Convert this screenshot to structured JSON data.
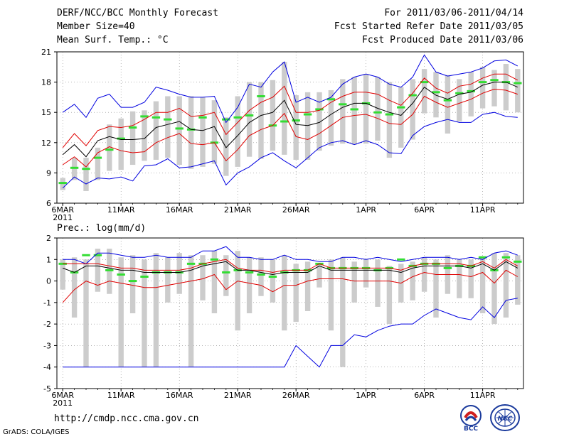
{
  "header": {
    "title": "DERF/NCC/BCC Monthly Forecast",
    "member_size": "Member Size=40",
    "variable1": "Mean Surf. Temp.: °C",
    "forecast_for": "For 2011/03/06-2011/04/14",
    "started": "Fcst Started Refer Date 2011/03/05",
    "produced": "Fcst Produced Date 2011/03/06"
  },
  "footer": {
    "url": "http://cmdp.ncc.cma.gov.cn",
    "credit": "GrADS: COLA/IGES",
    "logo1_text": "BCC",
    "logo2_text": "NCC"
  },
  "colors": {
    "mean": "#000000",
    "std_band": "#e00000",
    "extreme": "#0000e0",
    "box": "#cccccc",
    "median": "#33dd33"
  },
  "chart_data": [
    {
      "type": "line",
      "title": "Mean Surf. Temp.: °C",
      "ylabel": "Mean Surf. Temp.: °C",
      "ylim": [
        6,
        21
      ],
      "yticks": [
        6,
        9,
        12,
        15,
        18,
        21
      ],
      "x": [
        1,
        2,
        3,
        4,
        5,
        6,
        7,
        8,
        9,
        10,
        11,
        12,
        13,
        14,
        15,
        16,
        17,
        18,
        19,
        20,
        21,
        22,
        23,
        24,
        25,
        26,
        27,
        28,
        29,
        30,
        31,
        32,
        33,
        34,
        35,
        36,
        37,
        38,
        39,
        40
      ],
      "xlim": [
        0.5,
        40.5
      ],
      "xticks": [
        {
          "x": 1,
          "label": "6MAR",
          "sub": "2011"
        },
        {
          "x": 6,
          "label": "11MAR"
        },
        {
          "x": 11,
          "label": "16MAR"
        },
        {
          "x": 16,
          "label": "21MAR"
        },
        {
          "x": 21,
          "label": "26MAR"
        },
        {
          "x": 27,
          "label": "1APR"
        },
        {
          "x": 32,
          "label": "6APR"
        },
        {
          "x": 37,
          "label": "11APR"
        }
      ],
      "series": [
        {
          "name": "max",
          "values": [
            15.0,
            15.8,
            14.5,
            16.4,
            16.8,
            15.5,
            15.5,
            16.0,
            17.5,
            17.2,
            16.8,
            16.5,
            16.5,
            16.6,
            14.0,
            15.5,
            17.8,
            17.5,
            19.0,
            20.0,
            16.0,
            16.5,
            16.0,
            16.5,
            17.8,
            18.5,
            18.8,
            18.5,
            17.8,
            17.5,
            18.5,
            20.7,
            19.0,
            18.6,
            18.8,
            19.0,
            19.4,
            20.1,
            20.2,
            19.6
          ]
        },
        {
          "name": "mean_plus_std",
          "values": [
            11.5,
            12.9,
            11.7,
            13.2,
            13.6,
            13.5,
            13.7,
            14.3,
            15.0,
            15.0,
            15.4,
            14.6,
            14.7,
            15.0,
            12.8,
            14.0,
            15.2,
            16.0,
            16.5,
            17.6,
            15.0,
            15.0,
            15.2,
            16.0,
            16.6,
            17.0,
            17.0,
            16.8,
            16.2,
            15.7,
            16.9,
            18.4,
            17.4,
            16.9,
            17.6,
            17.8,
            18.4,
            18.8,
            18.8,
            18.2
          ]
        },
        {
          "name": "mean",
          "values": [
            10.8,
            11.8,
            10.6,
            12.2,
            12.6,
            12.3,
            12.3,
            12.4,
            13.5,
            13.8,
            14.1,
            13.3,
            13.2,
            13.6,
            11.5,
            12.7,
            14.0,
            14.7,
            15.0,
            16.2,
            13.8,
            13.7,
            14.0,
            14.8,
            15.5,
            15.9,
            15.9,
            15.4,
            15.0,
            14.7,
            15.9,
            17.5,
            16.7,
            16.3,
            16.8,
            17.0,
            17.7,
            18.0,
            18.0,
            17.5
          ]
        },
        {
          "name": "mean_minus_std",
          "values": [
            9.8,
            10.6,
            9.6,
            11.0,
            11.6,
            11.2,
            11.0,
            11.1,
            12.0,
            12.5,
            12.9,
            11.9,
            11.8,
            12.0,
            10.2,
            11.3,
            12.7,
            13.3,
            13.7,
            14.9,
            12.6,
            12.3,
            12.9,
            13.7,
            14.5,
            14.7,
            14.8,
            14.4,
            13.9,
            13.8,
            14.8,
            16.6,
            16.0,
            15.5,
            15.9,
            16.3,
            16.9,
            17.3,
            17.2,
            16.8
          ]
        },
        {
          "name": "min",
          "values": [
            7.5,
            8.6,
            7.9,
            8.5,
            8.4,
            8.6,
            8.2,
            9.7,
            9.8,
            10.4,
            9.5,
            9.6,
            9.9,
            10.2,
            7.8,
            9.0,
            9.6,
            10.5,
            11.0,
            10.2,
            9.5,
            10.5,
            11.5,
            12.0,
            12.2,
            11.8,
            12.2,
            11.8,
            11.0,
            10.9,
            12.7,
            13.6,
            14.0,
            14.3,
            14.0,
            14.0,
            14.8,
            15.0,
            14.6,
            14.5
          ]
        }
      ],
      "boxes": {
        "low": [
          7.3,
          8.3,
          7.2,
          8.3,
          9.2,
          9.3,
          9.8,
          10.2,
          10.3,
          10.5,
          9.8,
          9.4,
          9.6,
          9.9,
          8.7,
          9.6,
          10.6,
          10.4,
          11.2,
          10.8,
          10.3,
          10.3,
          11.2,
          11.7,
          11.9,
          11.8,
          11.9,
          12.2,
          10.5,
          11.5,
          12.3,
          14.9,
          14.5,
          12.9,
          14.1,
          14.6,
          15.4,
          15.6,
          15.2,
          15.0
        ],
        "high": [
          8.5,
          10.5,
          10.5,
          11.5,
          13.8,
          14.4,
          15.1,
          15.2,
          16.1,
          16.6,
          16.6,
          16.6,
          16.5,
          16.2,
          14.5,
          16.6,
          18.0,
          18.0,
          18.2,
          20.0,
          16.7,
          17.0,
          17.0,
          17.2,
          18.3,
          18.5,
          18.8,
          18.5,
          18.0,
          17.5,
          18.3,
          19.3,
          19.0,
          18.7,
          18.3,
          19.0,
          19.5,
          19.2,
          19.8,
          19.3
        ],
        "median": [
          8.0,
          9.5,
          9.4,
          10.5,
          11.3,
          12.4,
          13.5,
          14.6,
          14.5,
          14.3,
          13.4,
          13.3,
          14.5,
          12.0,
          14.3,
          14.5,
          14.7,
          16.6,
          13.7,
          14.1,
          14.2,
          14.8,
          15.3,
          16.3,
          15.8,
          15.3,
          15.9,
          15.0,
          14.8,
          15.5,
          16.7,
          18.0,
          17.0,
          16.2,
          16.9,
          17.1,
          18.0,
          18.2,
          18.0,
          17.9
        ]
      }
    },
    {
      "type": "line",
      "title": "Prec.: log(mm/d)",
      "ylabel": "Prec.: log(mm/d)",
      "ylim": [
        -5,
        2
      ],
      "yticks": [
        -5,
        -4,
        -3,
        -2,
        -1,
        0,
        1,
        2
      ],
      "x": [
        1,
        2,
        3,
        4,
        5,
        6,
        7,
        8,
        9,
        10,
        11,
        12,
        13,
        14,
        15,
        16,
        17,
        18,
        19,
        20,
        21,
        22,
        23,
        24,
        25,
        26,
        27,
        28,
        29,
        30,
        31,
        32,
        33,
        34,
        35,
        36,
        37,
        38,
        39,
        40
      ],
      "xlim": [
        0.5,
        40.5
      ],
      "xticks": [
        {
          "x": 1,
          "label": "6MAR",
          "sub": "2011"
        },
        {
          "x": 6,
          "label": "11MAR"
        },
        {
          "x": 11,
          "label": "16MAR"
        },
        {
          "x": 16,
          "label": "21MAR"
        },
        {
          "x": 21,
          "label": "26MAR"
        },
        {
          "x": 27,
          "label": "1APR"
        },
        {
          "x": 32,
          "label": "6APR"
        },
        {
          "x": 37,
          "label": "11APR"
        }
      ],
      "series": [
        {
          "name": "max",
          "values": [
            1.0,
            1.0,
            0.8,
            1.3,
            1.3,
            1.2,
            1.1,
            1.1,
            1.2,
            1.1,
            1.1,
            1.1,
            1.4,
            1.4,
            1.6,
            1.1,
            1.1,
            1.0,
            1.0,
            1.2,
            1.0,
            1.0,
            0.9,
            0.9,
            1.1,
            1.1,
            1.0,
            1.1,
            1.0,
            0.9,
            1.0,
            1.1,
            1.1,
            1.1,
            1.0,
            1.1,
            1.0,
            1.3,
            1.4,
            1.2
          ]
        },
        {
          "name": "mean_plus_std",
          "values": [
            0.8,
            0.8,
            0.8,
            0.8,
            0.7,
            0.6,
            0.6,
            0.5,
            0.5,
            0.5,
            0.5,
            0.6,
            0.8,
            0.9,
            1.0,
            0.6,
            0.5,
            0.5,
            0.4,
            0.5,
            0.5,
            0.5,
            0.8,
            0.6,
            0.6,
            0.6,
            0.6,
            0.6,
            0.6,
            0.5,
            0.7,
            0.8,
            0.8,
            0.8,
            0.8,
            0.7,
            0.9,
            0.6,
            1.0,
            0.7
          ]
        },
        {
          "name": "mean",
          "values": [
            0.6,
            0.4,
            0.7,
            0.7,
            0.6,
            0.5,
            0.5,
            0.4,
            0.4,
            0.4,
            0.4,
            0.5,
            0.7,
            0.8,
            0.9,
            0.5,
            0.5,
            0.4,
            0.3,
            0.4,
            0.4,
            0.4,
            0.7,
            0.5,
            0.5,
            0.5,
            0.5,
            0.5,
            0.5,
            0.4,
            0.6,
            0.7,
            0.7,
            0.7,
            0.7,
            0.6,
            0.8,
            0.5,
            0.9,
            0.6
          ]
        },
        {
          "name": "mean_minus_std",
          "values": [
            -1.0,
            -0.4,
            0.0,
            -0.2,
            0.0,
            -0.1,
            -0.2,
            -0.3,
            -0.3,
            -0.2,
            -0.1,
            0.0,
            0.1,
            0.3,
            -0.4,
            0.0,
            -0.1,
            -0.2,
            -0.5,
            -0.2,
            -0.2,
            0.0,
            0.1,
            0.1,
            0.1,
            0.0,
            0.0,
            0.0,
            0.0,
            -0.1,
            0.2,
            0.4,
            0.3,
            0.3,
            0.3,
            0.2,
            0.4,
            -0.1,
            0.5,
            0.2
          ]
        },
        {
          "name": "min",
          "values": [
            -4.0,
            -4.0,
            -4.0,
            -4.0,
            -4.0,
            -4.0,
            -4.0,
            -4.0,
            -4.0,
            -4.0,
            -4.0,
            -4.0,
            -4.0,
            -4.0,
            -4.0,
            -4.0,
            -4.0,
            -4.0,
            -4.0,
            -4.0,
            -3.0,
            -3.5,
            -4.0,
            -3.0,
            -3.0,
            -2.5,
            -2.6,
            -2.3,
            -2.1,
            -2.0,
            -2.0,
            -1.6,
            -1.3,
            -1.5,
            -1.7,
            -1.8,
            -1.2,
            -1.7,
            -0.9,
            -0.8
          ]
        }
      ],
      "boxes": {
        "low": [
          -0.4,
          -1.7,
          -4.0,
          -0.5,
          -0.6,
          -4.0,
          -1.5,
          -4.0,
          -4.0,
          -1.0,
          -0.6,
          -4.0,
          -0.9,
          -1.5,
          -0.7,
          -2.3,
          -1.5,
          -0.7,
          -1.0,
          -2.3,
          -1.9,
          -1.4,
          -0.3,
          -2.3,
          -4.0,
          -1.0,
          -0.3,
          -1.2,
          -2.0,
          -1.0,
          -0.9,
          -0.5,
          -1.7,
          -0.6,
          -0.8,
          -0.8,
          -1.5,
          -2.0,
          -1.7,
          -1.1
        ],
        "high": [
          1.0,
          1.1,
          1.0,
          1.5,
          1.5,
          1.1,
          1.2,
          1.0,
          1.3,
          1.1,
          1.3,
          1.2,
          1.2,
          1.4,
          1.2,
          1.4,
          1.1,
          1.1,
          1.0,
          1.2,
          0.8,
          0.9,
          0.8,
          1.0,
          1.1,
          0.9,
          1.0,
          1.0,
          0.7,
          0.8,
          0.9,
          1.1,
          1.0,
          1.2,
          1.0,
          1.0,
          1.1,
          1.3,
          1.3,
          1.2
        ],
        "median": [
          0.8,
          0.4,
          1.2,
          1.2,
          0.5,
          0.3,
          0.0,
          0.2,
          0.4,
          0.4,
          0.4,
          0.8,
          0.8,
          1.0,
          0.4,
          0.5,
          0.4,
          0.3,
          0.2,
          0.4,
          0.5,
          0.5,
          0.8,
          0.6,
          0.6,
          0.6,
          0.6,
          0.5,
          0.6,
          1.0,
          0.7,
          0.8,
          0.8,
          0.6,
          0.7,
          0.7,
          1.1,
          0.5,
          1.1,
          0.9
        ]
      }
    }
  ]
}
